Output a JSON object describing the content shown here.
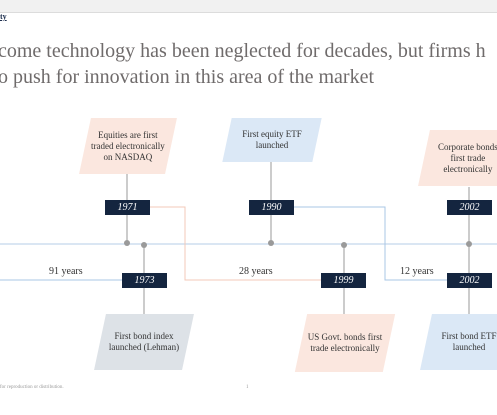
{
  "header": {
    "breadcrumb": "ty"
  },
  "headline": {
    "line1": "come technology has been neglected for decades, but firms h",
    "line2": "o push for innovation in this area of the market"
  },
  "timeline": {
    "top_events": [
      {
        "year": "1971",
        "text": "Equities are first traded electronically on NASDAQ"
      },
      {
        "year": "1990",
        "text": "First equity ETF launched"
      },
      {
        "year": "2002",
        "text": "Corporate bonds first trade electronically"
      }
    ],
    "bottom_events": [
      {
        "year": "1973",
        "text": "First bond index launched (Lehman)"
      },
      {
        "year": "1999",
        "text": "US Govt. bonds first trade electronically"
      },
      {
        "year": "2002",
        "text": "First bond ETF launched"
      }
    ],
    "gaps": [
      "91 years",
      "28 years",
      "12 years"
    ],
    "colors": {
      "axis": "#c4d7ec",
      "connector_pink": "#f3c9b8",
      "connector_blue": "#a9c7e6",
      "dot": "#9a9a9a",
      "year_box": "#14253f"
    }
  },
  "footer": {
    "disclaimer": "for reproduction or distribution.",
    "page_number": "1"
  }
}
